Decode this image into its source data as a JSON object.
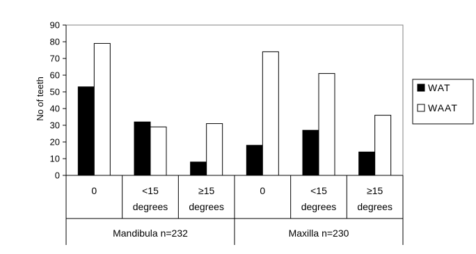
{
  "chart_data": {
    "type": "bar",
    "title": "",
    "ylabel": "No of teeth",
    "xlabel": "",
    "ylim": [
      0,
      90
    ],
    "yticks": [
      0,
      10,
      20,
      30,
      40,
      50,
      60,
      70,
      80,
      90
    ],
    "categories": [
      {
        "label_line1": "0",
        "label_line2": ""
      },
      {
        "label_line1": "<15",
        "label_line2": "degrees"
      },
      {
        "label_line1": "≥15",
        "label_line2": "degrees"
      },
      {
        "label_line1": "0",
        "label_line2": ""
      },
      {
        "label_line1": "<15",
        "label_line2": "degrees"
      },
      {
        "label_line1": "≥15",
        "label_line2": "degrees"
      }
    ],
    "groups": [
      {
        "label": "Mandibula n=232"
      },
      {
        "label": "Maxilla n=230"
      }
    ],
    "series": [
      {
        "name": "WAT",
        "color": "#000000",
        "values": [
          53,
          32,
          8,
          18,
          27,
          14
        ]
      },
      {
        "name": "WAAT",
        "color": "#ffffff",
        "values": [
          79,
          29,
          31,
          74,
          61,
          36
        ]
      }
    ],
    "legend_position": "right",
    "grid": false
  }
}
